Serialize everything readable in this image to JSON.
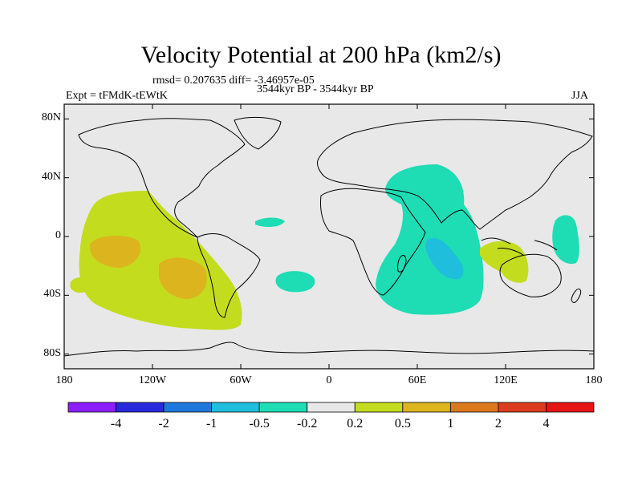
{
  "title": "Velocity Potential at 200 hPa (km2/s)",
  "stats_text": "rmsd= 0.207635 diff= -3.46957e-05",
  "experiment_text": "Expt = tFMdK-tEWtK",
  "period_text": "3544kyr BP - 3544kyr BP",
  "season_text": "JJA",
  "map": {
    "projection": "cylindrical equidistant",
    "lon_range": [
      -180,
      180
    ],
    "lat_range": [
      -90,
      90
    ],
    "y_ticks": [
      {
        "label": "80N",
        "lat": 80
      },
      {
        "label": "40N",
        "lat": 40
      },
      {
        "label": "0",
        "lat": 0
      },
      {
        "label": "40S",
        "lat": -40
      },
      {
        "label": "80S",
        "lat": -80
      }
    ],
    "x_ticks": [
      {
        "label": "180",
        "lon": -180
      },
      {
        "label": "120W",
        "lon": -120
      },
      {
        "label": "60W",
        "lon": -60
      },
      {
        "label": "0",
        "lon": 0
      },
      {
        "label": "60E",
        "lon": 60
      },
      {
        "label": "120E",
        "lon": 120
      },
      {
        "label": "180",
        "lon": 180
      }
    ],
    "background_color": "#e8e8e8",
    "regions": [
      {
        "name": "pacific-positive-anomaly",
        "level": "0.2 to 0.5",
        "color": "#c3dc1e"
      },
      {
        "name": "pacific-positive-core-west",
        "level": "0.5 to 1",
        "color": "#dcb41e"
      },
      {
        "name": "pacific-positive-core-south",
        "level": "0.5 to 1",
        "color": "#dcb41e"
      },
      {
        "name": "africa-indian-negative-anomaly",
        "level": "-0.5 to -0.2",
        "color": "#1edcb4"
      },
      {
        "name": "indian-negative-core",
        "level": "-1 to -0.5",
        "color": "#1ebedc"
      },
      {
        "name": "maritime-continent-positive",
        "level": "0.2 to 0.5",
        "color": "#c3dc1e"
      },
      {
        "name": "west-pacific-negative",
        "level": "-0.5 to -0.2",
        "color": "#1edcb4"
      },
      {
        "name": "atlantic-negative-north",
        "level": "-0.5 to -0.2",
        "color": "#1edcb4"
      },
      {
        "name": "atlantic-negative-south",
        "level": "-0.5 to -0.2",
        "color": "#1edcb4"
      }
    ]
  },
  "colorbar": {
    "labels": [
      "-4",
      "-2",
      "-1",
      "-0.5",
      "-0.2",
      "0.2",
      "0.5",
      "1",
      "2",
      "4"
    ],
    "colors": [
      "#8c1eff",
      "#2828dc",
      "#1e78dc",
      "#1ebedc",
      "#1edcb4",
      "#e8e8e8",
      "#c3dc1e",
      "#dcb41e",
      "#dc781e",
      "#dc3c1e",
      "#e61414"
    ]
  }
}
